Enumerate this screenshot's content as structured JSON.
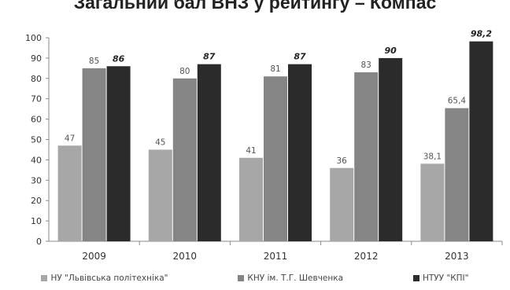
{
  "title": "Загальний бал ВНЗ у рейтингу – Компас",
  "colors": {
    "s0": "#a7a7a7",
    "s1": "#858585",
    "s2": "#2b2b2b",
    "axis": "#8a8a8a"
  },
  "chart_data": {
    "type": "bar",
    "title": "Загальний бал ВНЗ у рейтингу – Компас",
    "xlabel": "",
    "ylabel": "",
    "ylim": [
      0,
      100
    ],
    "yticks": [
      0,
      10,
      20,
      30,
      40,
      50,
      60,
      70,
      80,
      90,
      100
    ],
    "grid": false,
    "legend_position": "bottom",
    "categories": [
      "2009",
      "2010",
      "2011",
      "2012",
      "2013"
    ],
    "series": [
      {
        "name": "НУ \"Львівська політехніка\"",
        "values": [
          47,
          45,
          41,
          36,
          38.1
        ],
        "labels": [
          "47",
          "45",
          "41",
          "36",
          "38,1"
        ]
      },
      {
        "name": "КНУ ім. Т.Г. Шевченка",
        "values": [
          85,
          80,
          81,
          83,
          65.4
        ],
        "labels": [
          "85",
          "80",
          "81",
          "83",
          "65,4"
        ]
      },
      {
        "name": "НТУУ \"КПІ\"",
        "values": [
          86,
          87,
          87,
          90,
          98.2
        ],
        "labels": [
          "86",
          "87",
          "87",
          "90",
          "98,2"
        ]
      }
    ]
  }
}
